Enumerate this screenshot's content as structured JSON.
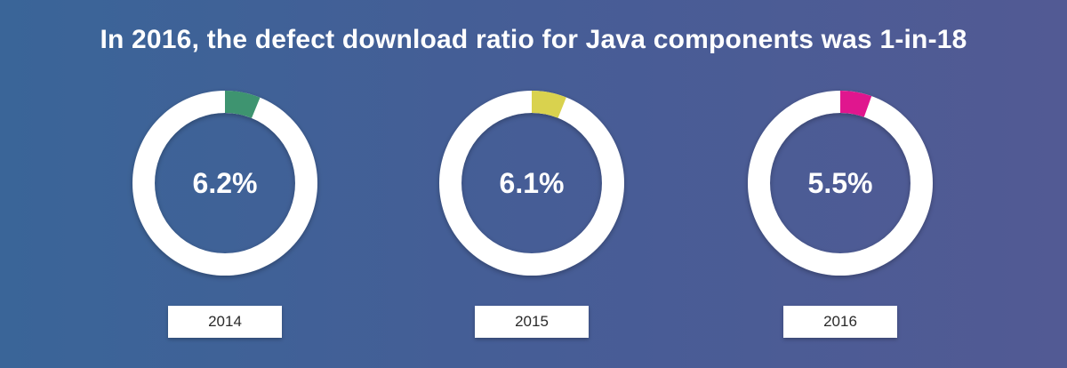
{
  "title": "In 2016, the defect download ratio for Java components was 1-in-18",
  "chart_data": {
    "type": "pie",
    "title": "In 2016, the defect download ratio for Java components was 1-in-18",
    "series": [
      {
        "category": "2014",
        "value": 6.2,
        "label": "6.2%",
        "color": "#3e9470"
      },
      {
        "category": "2015",
        "value": 6.1,
        "label": "6.1%",
        "color": "#d9d24e"
      },
      {
        "category": "2016",
        "value": 5.5,
        "label": "5.5%",
        "color": "#e0168e"
      }
    ]
  }
}
